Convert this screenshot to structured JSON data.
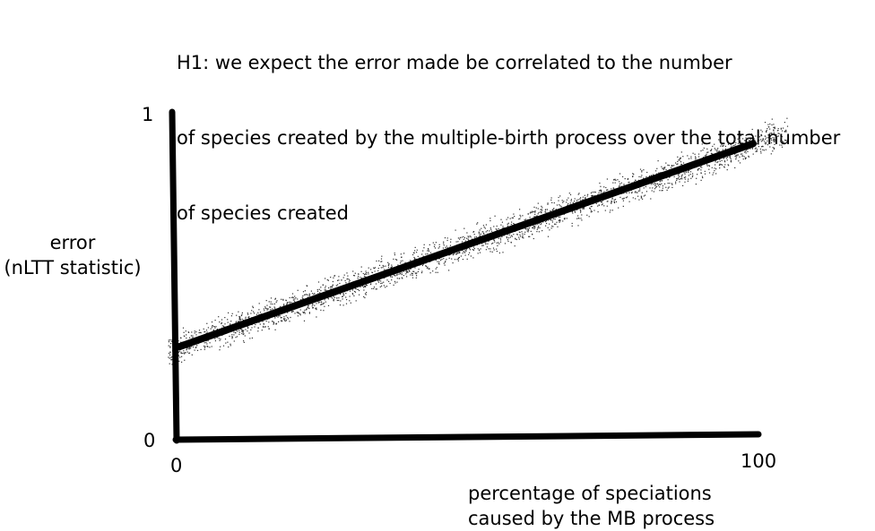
{
  "chart_data": {
    "type": "scatter",
    "title_lines": [
      "H1: we expect the error made be correlated to the number",
      "of species created by the multiple-birth process over the total number",
      "of species created"
    ],
    "ylabel_lines": [
      "error",
      "(nLTT statistic)"
    ],
    "xlabel_lines": [
      "percentage of speciations",
      "caused by the MB process"
    ],
    "x_ticks": [
      "0",
      "100"
    ],
    "y_ticks": [
      "0",
      "1"
    ],
    "xlim": [
      0,
      100
    ],
    "ylim": [
      0,
      1
    ],
    "trend_line": {
      "x": [
        0,
        100
      ],
      "y": [
        0.28,
        0.91
      ]
    },
    "scatter_band": {
      "x_range": [
        -2,
        106
      ],
      "spread": 0.07
    },
    "grid": false,
    "colors": {
      "axis": "#000000",
      "line": "#000000",
      "points": "#333333"
    }
  }
}
